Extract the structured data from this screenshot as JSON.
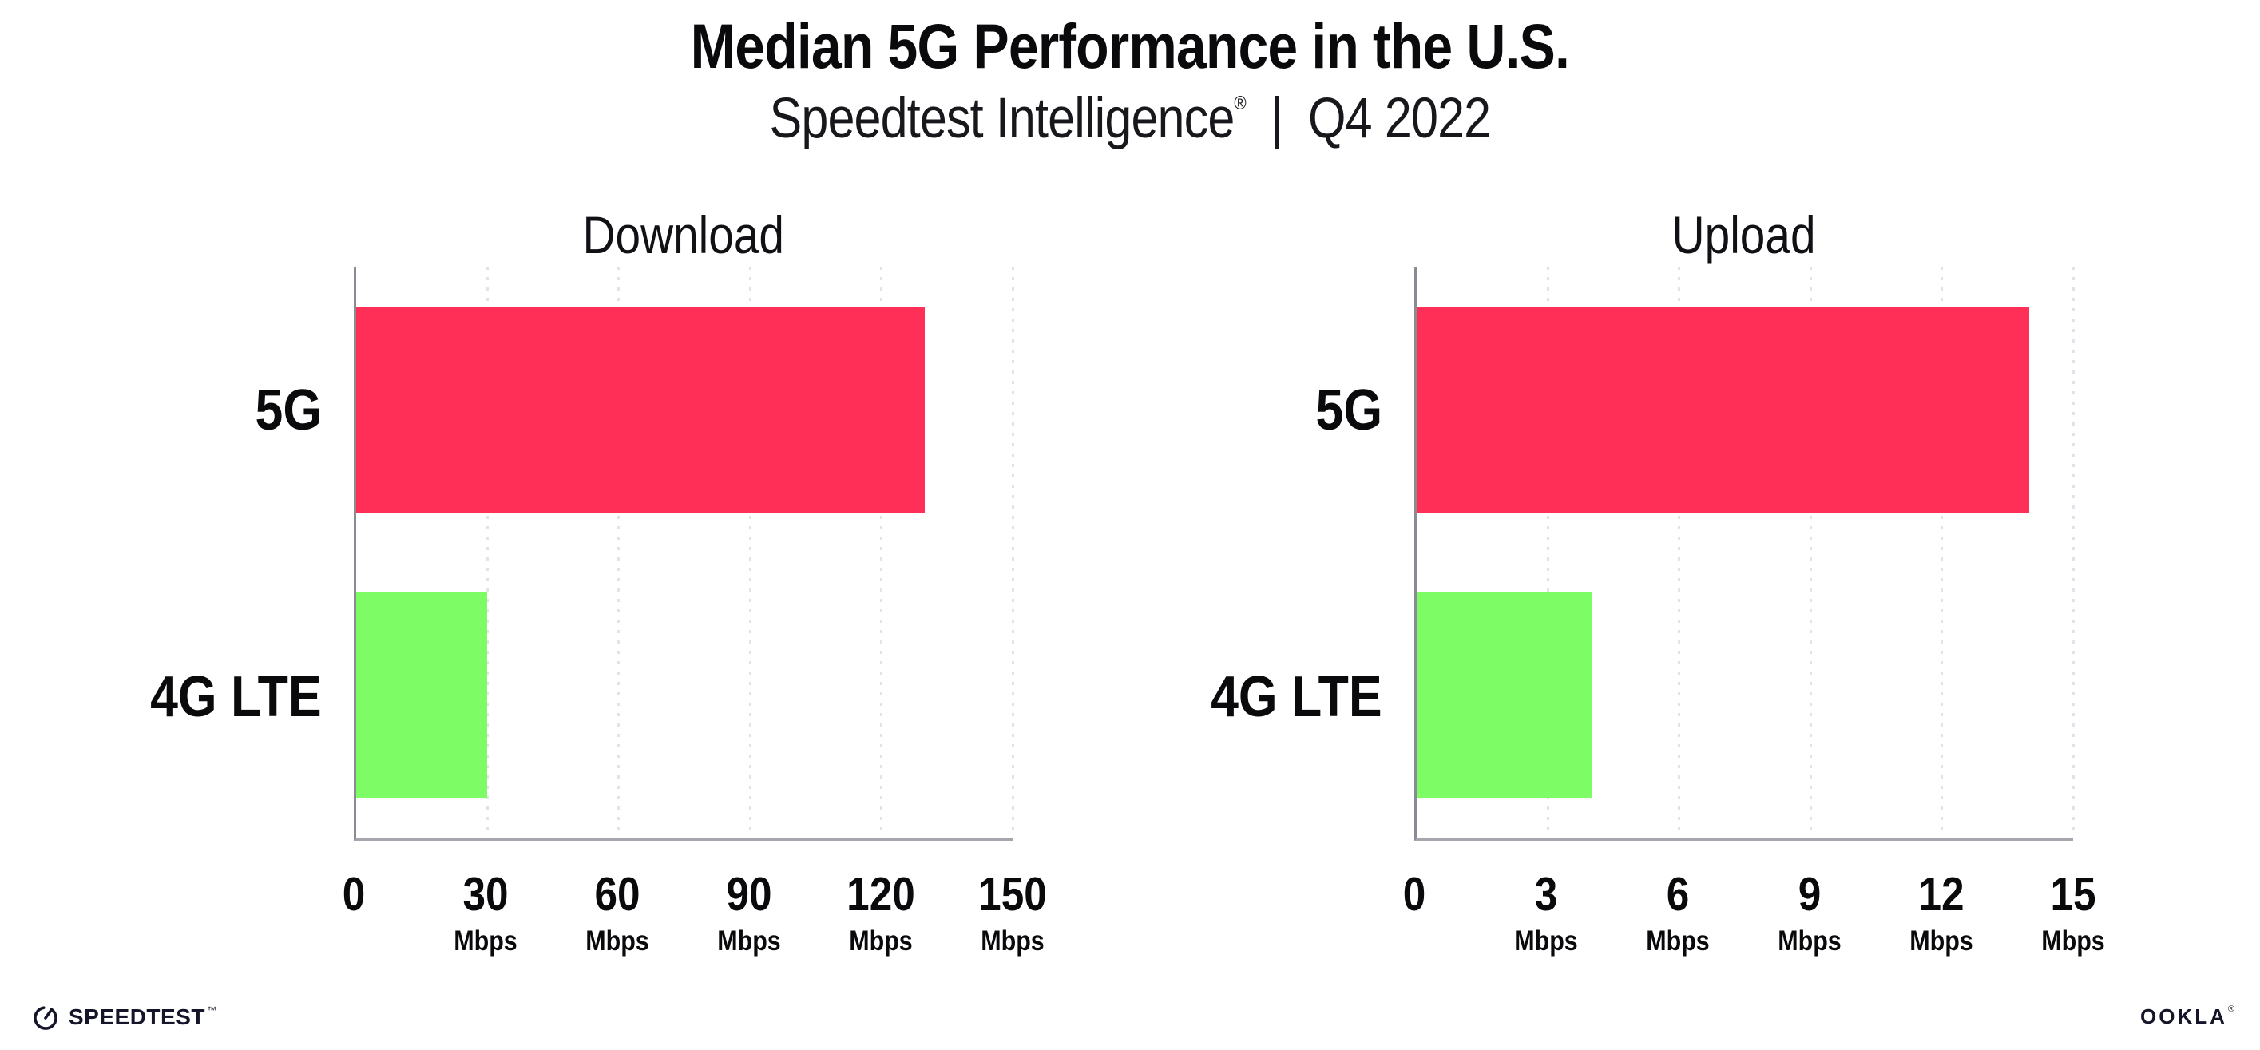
{
  "header": {
    "title": "Median 5G Performance in the U.S.",
    "subtitle": {
      "product": "Speedtest Intelligence",
      "registered_mark": "®",
      "separator": "|",
      "period": "Q4 2022"
    }
  },
  "chart_data": [
    {
      "type": "bar",
      "orientation": "horizontal",
      "title": "Download",
      "categories": [
        "5G",
        "4G LTE"
      ],
      "values": [
        130,
        30
      ],
      "value_unit": "Mbps",
      "xlim": [
        0,
        150
      ],
      "xticks": [
        0,
        30,
        60,
        90,
        120,
        150
      ],
      "tick_unit_label": "Mbps",
      "bar_colors": [
        "#FF2F57",
        "#7DFC65"
      ],
      "grid": "dotted vertical gridlines at ticks",
      "legend": "none"
    },
    {
      "type": "bar",
      "orientation": "horizontal",
      "title": "Upload",
      "categories": [
        "5G",
        "4G LTE"
      ],
      "values": [
        14,
        4
      ],
      "value_unit": "Mbps",
      "xlim": [
        0,
        15
      ],
      "xticks": [
        0,
        3,
        6,
        9,
        12,
        15
      ],
      "tick_unit_label": "Mbps",
      "bar_colors": [
        "#FF2F57",
        "#7DFC65"
      ],
      "grid": "dotted vertical gridlines at ticks",
      "legend": "none"
    }
  ],
  "footer": {
    "speedtest_logo_text": "SPEEDTEST",
    "speedtest_trademark": "™",
    "ookla_logo_text": "OOKLA",
    "ookla_registered_mark": "®"
  },
  "colors": {
    "bar_5g": "#FF2F57",
    "bar_4g_lte": "#7DFC65",
    "axis_y": "#8B8B94",
    "axis_x": "#A6A6AF",
    "gridline": "#E2E2EC",
    "text": "#0E0E12",
    "logo": "#15152A",
    "background": "#FFFFFF"
  }
}
